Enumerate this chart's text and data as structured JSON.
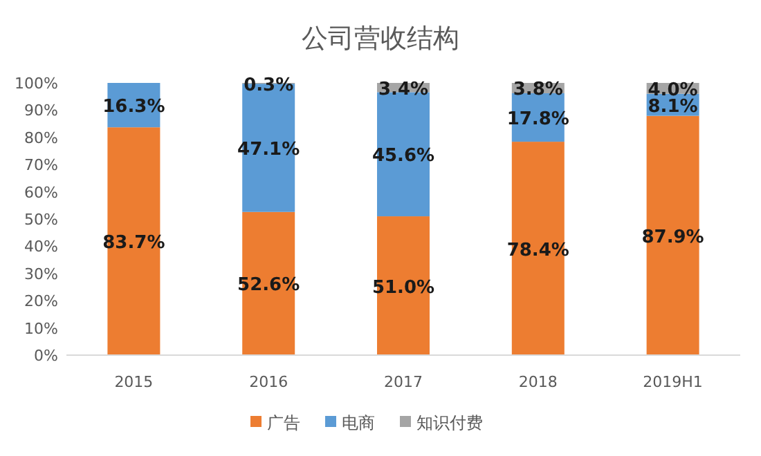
{
  "chart_data": {
    "type": "bar",
    "title": "公司营收结构",
    "stacked": true,
    "categories": [
      "2015",
      "2016",
      "2017",
      "2018",
      "2019H1"
    ],
    "series": [
      {
        "name": "广告",
        "color": "#ed7d31",
        "values": [
          83.7,
          52.6,
          51.0,
          78.4,
          87.9
        ],
        "value_labels": [
          "83.7%",
          "52.6%",
          "51.0%",
          "78.4%",
          "87.9%"
        ]
      },
      {
        "name": "电商",
        "color": "#5b9bd5",
        "values": [
          16.3,
          47.1,
          45.6,
          17.8,
          8.1
        ],
        "value_labels": [
          "16.3%",
          "47.1%",
          "45.6%",
          "17.8%",
          "8.1%"
        ]
      },
      {
        "name": "知识付费",
        "color": "#a5a5a5",
        "values": [
          null,
          0.3,
          3.4,
          3.8,
          4.0
        ],
        "value_labels": [
          null,
          "0.3%",
          "3.4%",
          "3.8%",
          "4.0%"
        ]
      }
    ],
    "ylim": [
      0,
      100
    ],
    "yticks": [
      {
        "value": 0,
        "label": "0%"
      },
      {
        "value": 10,
        "label": "10%"
      },
      {
        "value": 20,
        "label": "20%"
      },
      {
        "value": 30,
        "label": "30%"
      },
      {
        "value": 40,
        "label": "40%"
      },
      {
        "value": 50,
        "label": "50%"
      },
      {
        "value": 60,
        "label": "60%"
      },
      {
        "value": 70,
        "label": "70%"
      },
      {
        "value": 80,
        "label": "80%"
      },
      {
        "value": 90,
        "label": "90%"
      },
      {
        "value": 100,
        "label": "100%"
      }
    ],
    "legend": "bottom"
  }
}
